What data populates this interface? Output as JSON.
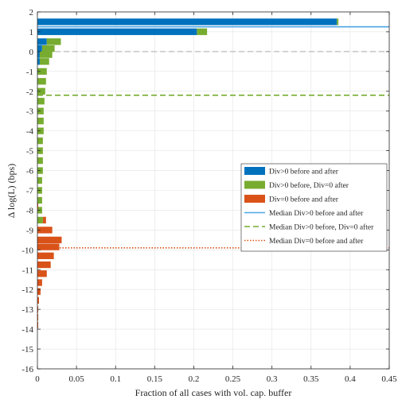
{
  "chart_data": {
    "type": "bar",
    "orientation": "horizontal",
    "stacked": true,
    "xlabel": "Fraction of all cases with vol. cap. buffer",
    "ylabel": "Δ log(L) (bps)",
    "xlim": [
      0,
      0.45
    ],
    "ylim": [
      -16,
      2
    ],
    "xticks": [
      0,
      0.05,
      0.1,
      0.15,
      0.2,
      0.25,
      0.3,
      0.35,
      0.4,
      0.45
    ],
    "xtick_labels": [
      "0",
      "0.05",
      "0.1",
      "0.15",
      "0.2",
      "0.25",
      "0.3",
      "0.35",
      "0.4",
      "0.45"
    ],
    "yticks": [
      2,
      1,
      0,
      -1,
      -2,
      -3,
      -4,
      -5,
      -6,
      -7,
      -8,
      -9,
      -10,
      -11,
      -12,
      -13,
      -14,
      -15,
      -16
    ],
    "ytick_labels": [
      "2",
      "1",
      "0",
      "-1",
      "-2",
      "-3",
      "-4",
      "-5",
      "-6",
      "-7",
      "-8",
      "-9",
      "-10",
      "-11",
      "-12",
      "-13",
      "-14",
      "-15",
      "-16"
    ],
    "grid": true,
    "legend_position": "right-center",
    "bin_width": 0.333,
    "series": [
      {
        "name": "Div>0 before and after",
        "color": "#0072bd",
        "bins": [
          {
            "y": 1.5,
            "value": 0.383
          },
          {
            "y": 1.0,
            "value": 0.204
          },
          {
            "y": 0.5,
            "value": 0.012
          },
          {
            "y": 0.15,
            "value": 0.006
          },
          {
            "y": -0.15,
            "value": 0.003
          },
          {
            "y": -0.5,
            "value": 0.003
          }
        ]
      },
      {
        "name": "Div>0 before, Div=0 after",
        "color": "#77ac30",
        "bins": [
          {
            "y": 1.5,
            "value": 0.002
          },
          {
            "y": 1.0,
            "value": 0.013
          },
          {
            "y": 0.5,
            "value": 0.018
          },
          {
            "y": 0.15,
            "value": 0.016
          },
          {
            "y": -0.15,
            "value": 0.016
          },
          {
            "y": -0.5,
            "value": 0.012
          },
          {
            "y": -1.0,
            "value": 0.012
          },
          {
            "y": -1.5,
            "value": 0.011
          },
          {
            "y": -2.0,
            "value": 0.01
          },
          {
            "y": -2.5,
            "value": 0.009
          },
          {
            "y": -3.0,
            "value": 0.008
          },
          {
            "y": -3.5,
            "value": 0.008
          },
          {
            "y": -4.0,
            "value": 0.008
          },
          {
            "y": -4.5,
            "value": 0.007
          },
          {
            "y": -5.0,
            "value": 0.007
          },
          {
            "y": -5.5,
            "value": 0.007
          },
          {
            "y": -6.0,
            "value": 0.007
          },
          {
            "y": -6.5,
            "value": 0.006
          },
          {
            "y": -7.0,
            "value": 0.006
          },
          {
            "y": -7.5,
            "value": 0.006
          },
          {
            "y": -8.0,
            "value": 0.006
          },
          {
            "y": -8.5,
            "value": 0.007
          }
        ]
      },
      {
        "name": "Div=0 before and after",
        "color": "#d95319",
        "bins": [
          {
            "y": -7.8,
            "value": 0.001
          },
          {
            "y": -8.5,
            "value": 0.004
          },
          {
            "y": -9.0,
            "value": 0.019
          },
          {
            "y": -9.5,
            "value": 0.031
          },
          {
            "y": -9.85,
            "value": 0.028
          },
          {
            "y": -10.3,
            "value": 0.021
          },
          {
            "y": -10.75,
            "value": 0.017
          },
          {
            "y": -11.2,
            "value": 0.012
          },
          {
            "y": -11.65,
            "value": 0.006
          },
          {
            "y": -12.1,
            "value": 0.004
          },
          {
            "y": -12.55,
            "value": 0.002
          },
          {
            "y": -13.0,
            "value": 0.001
          },
          {
            "y": -13.4,
            "value": 0.001
          },
          {
            "y": -13.8,
            "value": 0.001
          }
        ]
      }
    ],
    "medians": [
      {
        "name": "Median Div>0 before and after",
        "y": 1.25,
        "color": "#4da6e6",
        "style": "solid"
      },
      {
        "name": "Median Div>0 before, Div=0 after",
        "y": -2.2,
        "color": "#77ac30",
        "style": "dashed"
      },
      {
        "name": "Median Div=0 before and after",
        "y": -9.9,
        "color": "#d95319",
        "style": "dotted"
      }
    ],
    "reference_lines": [
      {
        "y": 0,
        "color": "#aaaaaa",
        "style": "dashed"
      }
    ]
  }
}
